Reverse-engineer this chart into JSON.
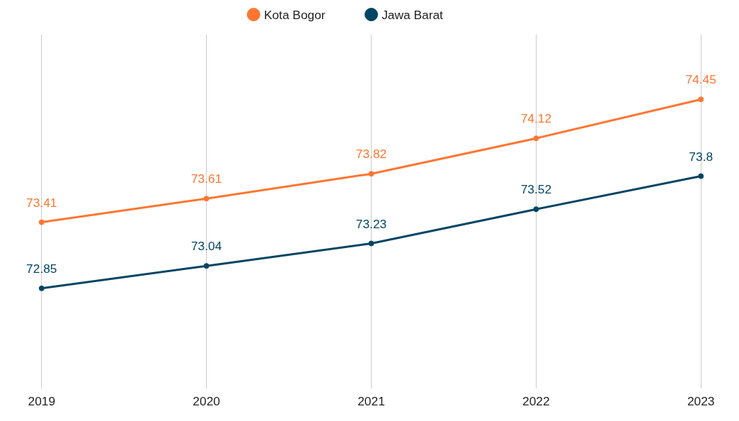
{
  "chart_data": {
    "type": "line",
    "categories": [
      "2019",
      "2020",
      "2021",
      "2022",
      "2023"
    ],
    "series": [
      {
        "name": "Kota Bogor",
        "color": "#ff7631",
        "values": [
          73.41,
          73.61,
          73.82,
          74.12,
          74.45
        ]
      },
      {
        "name": "Jawa Barat",
        "color": "#004563",
        "values": [
          72.85,
          73.04,
          73.23,
          73.52,
          73.8
        ]
      }
    ],
    "ylim": [
      72,
      75
    ],
    "tick_labels": "x",
    "grid": "x",
    "legend": "top",
    "marker": "circle",
    "line_style": "solid",
    "data_labels": true
  }
}
